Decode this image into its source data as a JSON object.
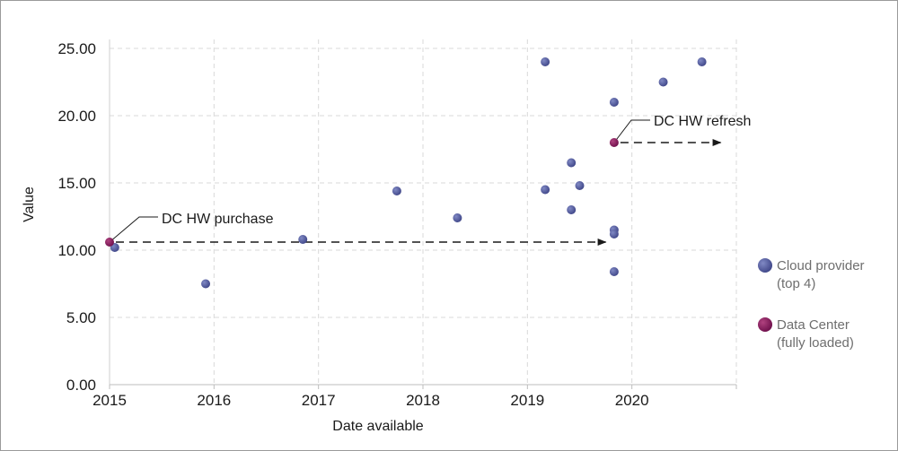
{
  "colors": {
    "cloud": "#535b9e",
    "datacenter": "#8b1d63",
    "grid": "#d9d9d9",
    "frame": "#9a9a9a"
  },
  "chart_data": {
    "type": "scatter",
    "xlabel": "Date available",
    "ylabel": "Value",
    "xlim": [
      2015.0,
      2021.0
    ],
    "ylim": [
      0,
      25
    ],
    "x_ticks": [
      "2015",
      "2016",
      "2017",
      "2018",
      "2019",
      "2020"
    ],
    "y_ticks": [
      "0.00",
      "5.00",
      "10.00",
      "15.00",
      "20.00",
      "25.00"
    ],
    "grid": true,
    "legend_position": "right",
    "series": [
      {
        "name": "Cloud provider (top 4)",
        "legend_lines": [
          "Cloud provider",
          "(top 4)"
        ],
        "points": [
          [
            2015.05,
            10.2
          ],
          [
            2015.92,
            7.5
          ],
          [
            2016.85,
            10.8
          ],
          [
            2017.75,
            14.4
          ],
          [
            2018.33,
            12.4
          ],
          [
            2019.17,
            24.0
          ],
          [
            2019.17,
            14.5
          ],
          [
            2019.42,
            16.5
          ],
          [
            2019.42,
            13.0
          ],
          [
            2019.5,
            14.8
          ],
          [
            2019.83,
            21.0
          ],
          [
            2019.83,
            11.5
          ],
          [
            2019.83,
            11.2
          ],
          [
            2019.83,
            8.4
          ],
          [
            2020.3,
            22.5
          ],
          [
            2020.67,
            24.0
          ]
        ]
      },
      {
        "name": "Data Center (fully loaded)",
        "legend_lines": [
          "Data Center",
          "(fully loaded)"
        ],
        "points": [
          [
            2015.0,
            10.6
          ],
          [
            2019.83,
            18.0
          ]
        ]
      }
    ],
    "annotations": [
      {
        "text": "DC HW purchase",
        "point": [
          2015.0,
          10.6
        ],
        "arrow_to": [
          2019.75,
          10.6
        ]
      },
      {
        "text": "DC HW refresh",
        "point": [
          2019.83,
          18.0
        ],
        "arrow_to": [
          2020.85,
          18.0
        ]
      }
    ]
  }
}
